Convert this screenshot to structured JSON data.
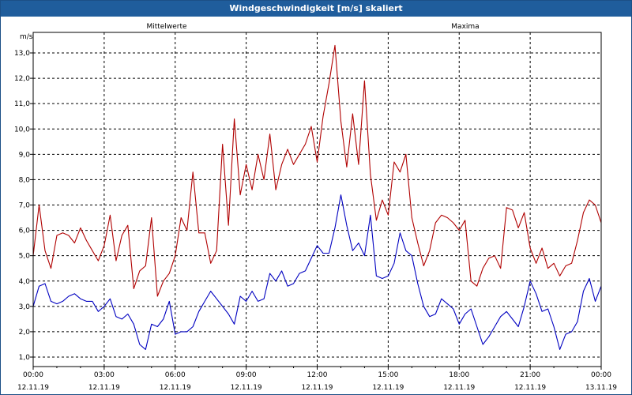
{
  "window": {
    "title": "Windgeschwindigkeit [m/s] skaliert"
  },
  "colors": {
    "mittel": "#0000c0",
    "maxima": "#b00000",
    "titlebar": "#1f5d9c",
    "grid": "#000000"
  },
  "chart_data": {
    "type": "line",
    "title": "Windgeschwindigkeit [m/s] skaliert",
    "ylabel": "m/s",
    "xlabel": "",
    "ylim": [
      0.7,
      13.6
    ],
    "xlim": [
      0,
      24
    ],
    "y_ticks": [
      "1,0",
      "2,0",
      "3,0",
      "4,0",
      "5,0",
      "6,0",
      "7,0",
      "8,0",
      "9,0",
      "10,0",
      "11,0",
      "12,0",
      "13,0"
    ],
    "x_ticks": [
      {
        "time": "00:00",
        "date": "12.11.19"
      },
      {
        "time": "03:00",
        "date": "12.11.19"
      },
      {
        "time": "06:00",
        "date": "12.11.19"
      },
      {
        "time": "09:00",
        "date": "12.11.19"
      },
      {
        "time": "12:00",
        "date": "12.11.19"
      },
      {
        "time": "15:00",
        "date": "12.11.19"
      },
      {
        "time": "18:00",
        "date": "12.11.19"
      },
      {
        "time": "21:00",
        "date": "12.11.19"
      },
      {
        "time": "00:00",
        "date": "13.11.19"
      }
    ],
    "grid": true,
    "series": [
      {
        "name": "Mittelwerte",
        "color": "#0000c0",
        "x": [
          0,
          0.25,
          0.5,
          0.75,
          1,
          1.25,
          1.5,
          1.75,
          2,
          2.25,
          2.5,
          2.75,
          3,
          3.25,
          3.5,
          3.75,
          4,
          4.25,
          4.5,
          4.75,
          5,
          5.25,
          5.5,
          5.75,
          6,
          6.25,
          6.5,
          6.75,
          7,
          7.25,
          7.5,
          7.75,
          8,
          8.25,
          8.5,
          8.75,
          9,
          9.25,
          9.5,
          9.75,
          10,
          10.25,
          10.5,
          10.75,
          11,
          11.25,
          11.5,
          11.75,
          12,
          12.25,
          12.5,
          12.75,
          13,
          13.25,
          13.5,
          13.75,
          14,
          14.25,
          14.5,
          14.75,
          15,
          15.25,
          15.5,
          15.75,
          16,
          16.25,
          16.5,
          16.75,
          17,
          17.25,
          17.5,
          17.75,
          18,
          18.25,
          18.5,
          18.75,
          19,
          19.25,
          19.5,
          19.75,
          20,
          20.25,
          20.5,
          20.75,
          21,
          21.25,
          21.5,
          21.75,
          22,
          22.25,
          22.5,
          22.75,
          23,
          23.25,
          23.5,
          23.75,
          24
        ],
        "values": [
          3.0,
          3.8,
          3.9,
          3.2,
          3.1,
          3.2,
          3.4,
          3.5,
          3.3,
          3.2,
          3.2,
          2.8,
          3.0,
          3.3,
          2.6,
          2.5,
          2.7,
          2.3,
          1.5,
          1.3,
          2.3,
          2.2,
          2.5,
          3.2,
          1.9,
          2.0,
          2.0,
          2.2,
          2.8,
          3.2,
          3.6,
          3.3,
          3.0,
          2.7,
          2.3,
          3.4,
          3.2,
          3.6,
          3.2,
          3.3,
          4.3,
          4.0,
          4.4,
          3.8,
          3.9,
          4.3,
          4.4,
          4.9,
          5.4,
          5.1,
          5.1,
          6.1,
          7.4,
          6.2,
          5.2,
          5.5,
          5.0,
          6.6,
          4.2,
          4.1,
          4.2,
          4.7,
          5.9,
          5.2,
          5.0,
          3.9,
          3.0,
          2.6,
          2.7,
          3.3,
          3.1,
          2.9,
          2.3,
          2.7,
          2.9,
          2.2,
          1.5,
          1.8,
          2.2,
          2.6,
          2.8,
          2.5,
          2.2,
          3.0,
          4.0,
          3.5,
          2.8,
          2.9,
          2.2,
          1.3,
          1.9,
          2.0,
          2.4,
          3.6,
          4.1,
          3.2,
          3.8
        ]
      },
      {
        "name": "Maxima",
        "color": "#b00000",
        "x": [
          0,
          0.25,
          0.5,
          0.75,
          1,
          1.25,
          1.5,
          1.75,
          2,
          2.25,
          2.5,
          2.75,
          3,
          3.25,
          3.5,
          3.75,
          4,
          4.25,
          4.5,
          4.75,
          5,
          5.25,
          5.5,
          5.75,
          6,
          6.25,
          6.5,
          6.75,
          7,
          7.25,
          7.5,
          7.75,
          8,
          8.25,
          8.5,
          8.75,
          9,
          9.25,
          9.5,
          9.75,
          10,
          10.25,
          10.5,
          10.75,
          11,
          11.25,
          11.5,
          11.75,
          12,
          12.25,
          12.5,
          12.75,
          13,
          13.25,
          13.5,
          13.75,
          14,
          14.25,
          14.5,
          14.75,
          15,
          15.25,
          15.5,
          15.75,
          16,
          16.25,
          16.5,
          16.75,
          17,
          17.25,
          17.5,
          17.75,
          18,
          18.25,
          18.5,
          18.75,
          19,
          19.25,
          19.5,
          19.75,
          20,
          20.25,
          20.5,
          20.75,
          21,
          21.25,
          21.5,
          21.75,
          22,
          22.25,
          22.5,
          22.75,
          23,
          23.25,
          23.5,
          23.75,
          24
        ],
        "values": [
          5.0,
          7.0,
          5.2,
          4.5,
          5.8,
          5.9,
          5.8,
          5.5,
          6.1,
          5.6,
          5.2,
          4.8,
          5.4,
          6.6,
          4.8,
          5.8,
          6.2,
          3.7,
          4.4,
          4.6,
          6.5,
          3.4,
          4.0,
          4.3,
          5.0,
          6.5,
          6.0,
          8.3,
          5.9,
          5.9,
          4.7,
          5.2,
          9.4,
          6.2,
          10.4,
          7.4,
          8.6,
          7.6,
          9.0,
          8.0,
          9.8,
          7.6,
          8.6,
          9.2,
          8.6,
          9.0,
          9.4,
          10.1,
          8.7,
          10.5,
          11.8,
          13.3,
          10.3,
          8.5,
          10.6,
          8.6,
          11.9,
          8.2,
          6.4,
          7.2,
          6.6,
          8.7,
          8.3,
          9.0,
          6.5,
          5.5,
          4.6,
          5.2,
          6.3,
          6.6,
          6.5,
          6.3,
          6.0,
          6.4,
          4.0,
          3.8,
          4.5,
          4.9,
          5.0,
          4.5,
          6.9,
          6.8,
          6.1,
          6.7,
          5.3,
          4.7,
          5.3,
          4.5,
          4.7,
          4.2,
          4.6,
          4.7,
          5.6,
          6.7,
          7.2,
          7.0,
          6.3
        ]
      }
    ]
  }
}
